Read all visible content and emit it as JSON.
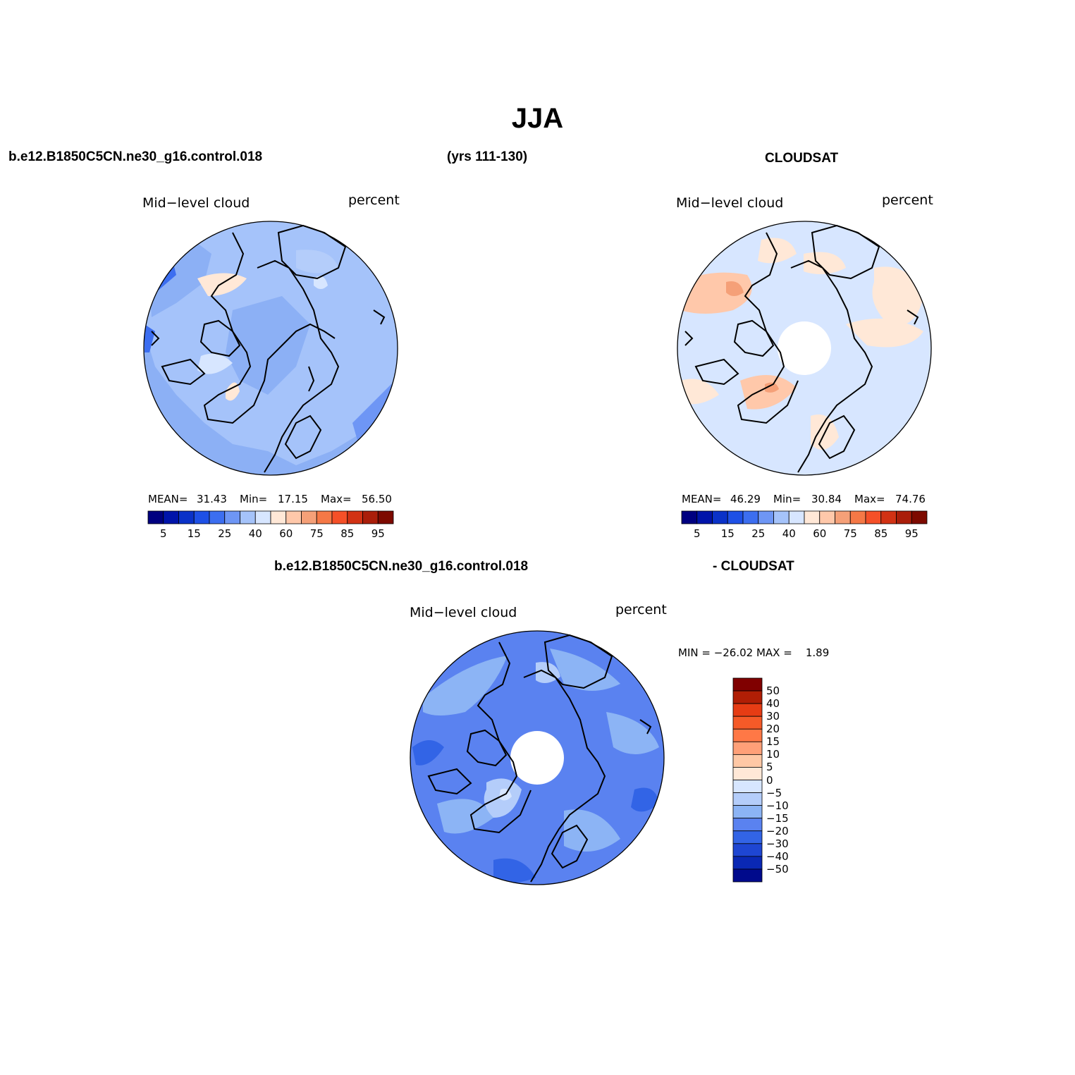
{
  "title": "JJA",
  "headers": {
    "case_name": "b.e12.B1850C5CN.ne30_g16.control.018",
    "years": "(yrs 111-130)",
    "obs_name": "CLOUDSAT",
    "diff_case": "b.e12.B1850C5CN.ne30_g16.control.018",
    "diff_obs": "- CLOUDSAT"
  },
  "panels": [
    {
      "id": "model",
      "left_label": "Mid−level cloud",
      "right_label": "percent",
      "stats": {
        "mean_label": "MEAN=",
        "mean": "31.43",
        "min_label": "Min=",
        "min": "17.15",
        "max_label": "Max=",
        "max": "56.50"
      }
    },
    {
      "id": "obs",
      "left_label": "Mid−level cloud",
      "right_label": "percent",
      "stats": {
        "mean_label": "MEAN=",
        "mean": "46.29",
        "min_label": "Min=",
        "min": "30.84",
        "max_label": "Max=",
        "max": "74.76"
      }
    },
    {
      "id": "diff",
      "left_label": "Mid−level cloud",
      "right_label": "percent",
      "stats_line": "MIN = −26.02 MAX =    1.89"
    }
  ],
  "abs_colorbar": {
    "colors": [
      "#000080",
      "#0014aa",
      "#0a32c8",
      "#1e50e6",
      "#3c6ef0",
      "#6e96f5",
      "#a5c3fa",
      "#d7e6ff",
      "#ffe8d7",
      "#ffc8aa",
      "#f5a078",
      "#f57846",
      "#f55028",
      "#d23214",
      "#aa1e0a",
      "#7d0a00"
    ],
    "tick_labels": [
      "5",
      "15",
      "25",
      "40",
      "60",
      "75",
      "85",
      "95"
    ]
  },
  "diff_colorbar": {
    "colors": [
      "#800000",
      "#b01e05",
      "#e63c14",
      "#f55a28",
      "#ff7846",
      "#ffa078",
      "#ffc8a5",
      "#ffe8d7",
      "#d7e6ff",
      "#b4cdfa",
      "#8cb4f5",
      "#5a82f0",
      "#3264e6",
      "#1e46d2",
      "#0a28b4",
      "#000a8c"
    ],
    "tick_labels": [
      "50",
      "40",
      "30",
      "20",
      "15",
      "10",
      "5",
      "0",
      "−5",
      "−10",
      "−15",
      "−20",
      "−30",
      "−40",
      "−50"
    ]
  }
}
